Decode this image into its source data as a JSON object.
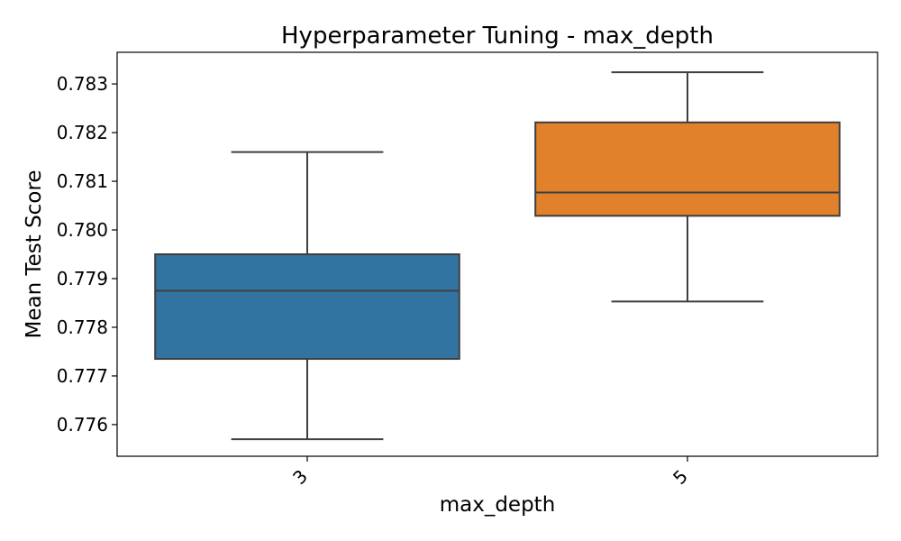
{
  "chart_data": {
    "type": "box",
    "title": "Hyperparameter Tuning - max_depth",
    "xlabel": "max_depth",
    "ylabel": "Mean Test Score",
    "ylim": [
      0.77535,
      0.78365
    ],
    "yticks": [
      0.776,
      0.777,
      0.778,
      0.779,
      0.78,
      0.781,
      0.782,
      0.783
    ],
    "ytick_labels": [
      "0.776",
      "0.777",
      "0.778",
      "0.779",
      "0.780",
      "0.781",
      "0.782",
      "0.783"
    ],
    "categories": [
      "3",
      "5"
    ],
    "boxes": [
      {
        "category": "3",
        "whisker_low": 0.7757,
        "q1": 0.77735,
        "median": 0.77875,
        "q3": 0.7795,
        "whisker_high": 0.7816,
        "color": "#3274a1"
      },
      {
        "category": "5",
        "whisker_low": 0.77853,
        "q1": 0.78029,
        "median": 0.78077,
        "q3": 0.78221,
        "whisker_high": 0.78324,
        "color": "#e1812c"
      }
    ],
    "grid": false,
    "legend": "none"
  }
}
